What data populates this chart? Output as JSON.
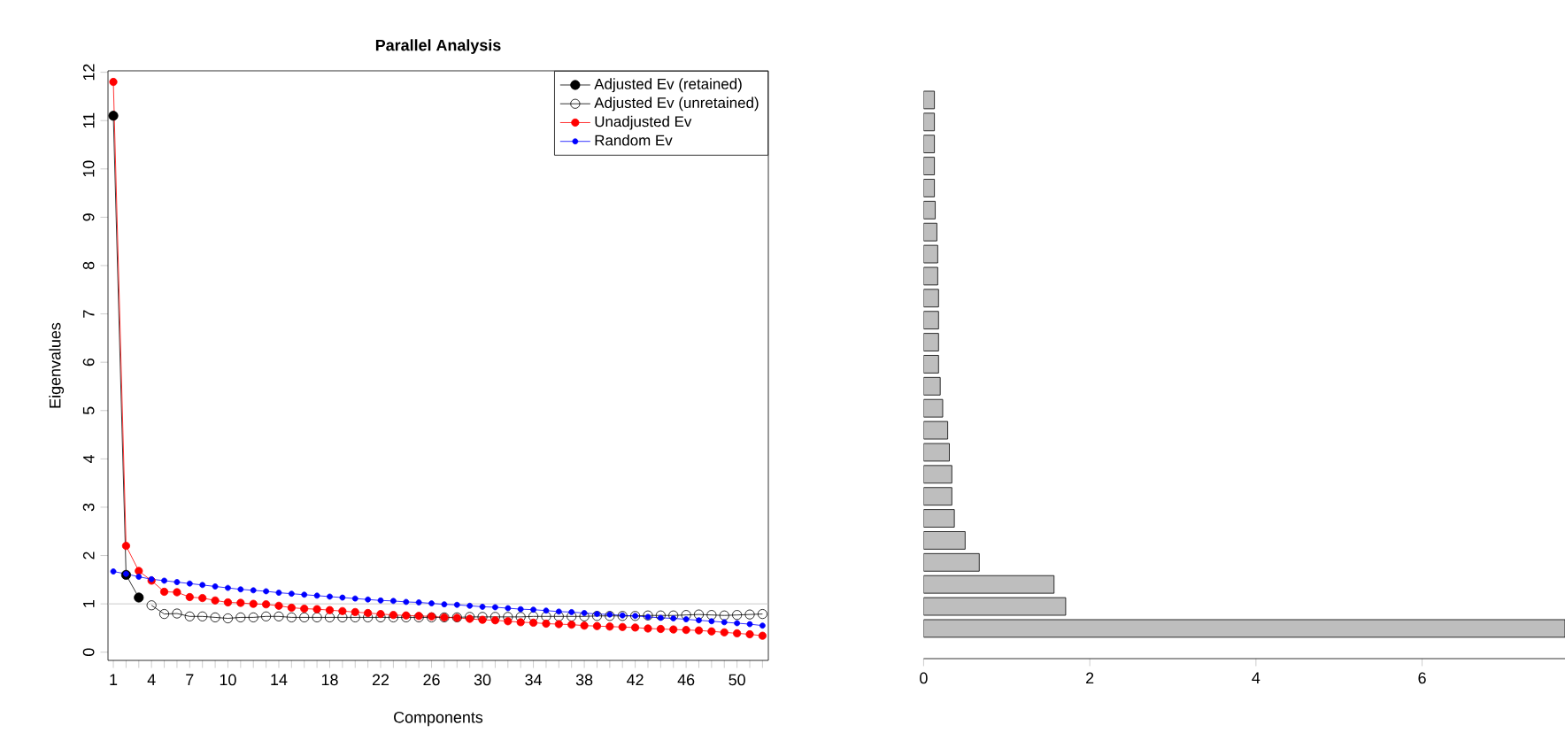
{
  "chart_data": [
    {
      "type": "line",
      "title": "Parallel Analysis",
      "xlabel": "Components",
      "ylabel": "Eigenvalues",
      "xlim": [
        0.58,
        52.46
      ],
      "ylim": [
        -0.17,
        12.03
      ],
      "xticks": [
        1,
        {
          "value": 2,
          "label": null
        },
        {
          "value": 3,
          "label": null
        },
        4,
        {
          "value": 5,
          "label": null
        },
        {
          "value": 6,
          "label": null
        },
        7,
        {
          "value": 8,
          "label": null
        },
        {
          "value": 9,
          "label": null
        },
        10,
        {
          "value": 11,
          "label": null
        },
        {
          "value": 12,
          "label": null
        },
        {
          "value": 13,
          "label": null
        },
        14,
        {
          "value": 15,
          "label": null
        },
        {
          "value": 16,
          "label": null
        },
        {
          "value": 17,
          "label": null
        },
        18,
        {
          "value": 19,
          "label": null
        },
        {
          "value": 20,
          "label": null
        },
        {
          "value": 21,
          "label": null
        },
        22,
        {
          "value": 23,
          "label": null
        },
        {
          "value": 24,
          "label": null
        },
        {
          "value": 25,
          "label": null
        },
        26,
        {
          "value": 27,
          "label": null
        },
        {
          "value": 28,
          "label": null
        },
        {
          "value": 29,
          "label": null
        },
        30,
        {
          "value": 31,
          "label": null
        },
        {
          "value": 32,
          "label": null
        },
        {
          "value": 33,
          "label": null
        },
        34,
        {
          "value": 35,
          "label": null
        },
        {
          "value": 36,
          "label": null
        },
        {
          "value": 37,
          "label": null
        },
        38,
        {
          "value": 39,
          "label": null
        },
        {
          "value": 40,
          "label": null
        },
        {
          "value": 41,
          "label": null
        },
        42,
        {
          "value": 43,
          "label": null
        },
        {
          "value": 44,
          "label": null
        },
        {
          "value": 45,
          "label": null
        },
        46,
        {
          "value": 47,
          "label": null
        },
        {
          "value": 48,
          "label": null
        },
        {
          "value": 49,
          "label": null
        },
        50,
        {
          "value": 51,
          "label": null
        },
        {
          "value": 52,
          "label": null
        }
      ],
      "yticks": [
        0,
        1,
        2,
        3,
        4,
        5,
        6,
        7,
        8,
        9,
        10,
        11,
        12
      ],
      "legend": "top right",
      "grid": false,
      "ref_lines": [
        {
          "axis": "y",
          "value": 1,
          "color": "#bebebe"
        }
      ],
      "series": [
        {
          "name": "Adjusted Ev (retained)",
          "color": "#000000",
          "marker": "circle",
          "x": [
            1,
            2,
            3
          ],
          "values": [
            11.1,
            1.6,
            1.13
          ]
        },
        {
          "name": "Adjusted Ev (unretained)",
          "color": "#000000",
          "marker": "open circle",
          "x": [
            4,
            5,
            6,
            7,
            8,
            9,
            10,
            11,
            12,
            13,
            14,
            15,
            16,
            17,
            18,
            19,
            20,
            21,
            22,
            23,
            24,
            25,
            26,
            27,
            28,
            29,
            30,
            31,
            32,
            33,
            34,
            35,
            36,
            37,
            38,
            39,
            40,
            41,
            42,
            43,
            44,
            45,
            46,
            47,
            48,
            49,
            50,
            51,
            52
          ],
          "values": [
            0.97,
            0.79,
            0.8,
            0.74,
            0.74,
            0.72,
            0.7,
            0.72,
            0.72,
            0.74,
            0.74,
            0.72,
            0.72,
            0.72,
            0.72,
            0.72,
            0.72,
            0.72,
            0.72,
            0.72,
            0.72,
            0.72,
            0.72,
            0.72,
            0.72,
            0.73,
            0.73,
            0.73,
            0.73,
            0.73,
            0.74,
            0.74,
            0.74,
            0.74,
            0.74,
            0.75,
            0.75,
            0.75,
            0.75,
            0.76,
            0.76,
            0.76,
            0.77,
            0.78,
            0.77,
            0.76,
            0.77,
            0.78,
            0.79
          ]
        },
        {
          "name": "Unadjusted Ev",
          "color": "#ff0000",
          "marker": "circle",
          "x": [
            1,
            2,
            3,
            4,
            5,
            6,
            7,
            8,
            9,
            10,
            11,
            12,
            13,
            14,
            15,
            16,
            17,
            18,
            19,
            20,
            21,
            22,
            23,
            24,
            25,
            26,
            27,
            28,
            29,
            30,
            31,
            32,
            33,
            34,
            35,
            36,
            37,
            38,
            39,
            40,
            41,
            42,
            43,
            44,
            45,
            46,
            47,
            48,
            49,
            50,
            51,
            52
          ],
          "values": [
            11.8,
            2.2,
            1.68,
            1.48,
            1.25,
            1.24,
            1.14,
            1.12,
            1.07,
            1.03,
            1.02,
            1.0,
            0.99,
            0.96,
            0.92,
            0.9,
            0.89,
            0.87,
            0.85,
            0.83,
            0.81,
            0.79,
            0.77,
            0.76,
            0.75,
            0.74,
            0.72,
            0.71,
            0.69,
            0.67,
            0.66,
            0.64,
            0.62,
            0.61,
            0.59,
            0.58,
            0.57,
            0.55,
            0.54,
            0.53,
            0.52,
            0.51,
            0.49,
            0.48,
            0.47,
            0.46,
            0.45,
            0.43,
            0.41,
            0.39,
            0.37,
            0.34
          ]
        },
        {
          "name": "Random Ev",
          "color": "#0000ff",
          "marker": "circle",
          "x": [
            1,
            2,
            3,
            4,
            5,
            6,
            7,
            8,
            9,
            10,
            11,
            12,
            13,
            14,
            15,
            16,
            17,
            18,
            19,
            20,
            21,
            22,
            23,
            24,
            25,
            26,
            27,
            28,
            29,
            30,
            31,
            32,
            33,
            34,
            35,
            36,
            37,
            38,
            39,
            40,
            41,
            42,
            43,
            44,
            45,
            46,
            47,
            48,
            49,
            50,
            51,
            52
          ],
          "values": [
            1.67,
            1.62,
            1.56,
            1.51,
            1.48,
            1.45,
            1.42,
            1.39,
            1.36,
            1.33,
            1.3,
            1.28,
            1.26,
            1.23,
            1.21,
            1.19,
            1.17,
            1.15,
            1.13,
            1.11,
            1.09,
            1.07,
            1.06,
            1.04,
            1.03,
            1.01,
            0.99,
            0.98,
            0.96,
            0.94,
            0.93,
            0.91,
            0.89,
            0.88,
            0.86,
            0.84,
            0.83,
            0.81,
            0.79,
            0.78,
            0.76,
            0.75,
            0.73,
            0.71,
            0.7,
            0.68,
            0.66,
            0.64,
            0.62,
            0.6,
            0.58,
            0.55
          ]
        }
      ]
    },
    {
      "type": "bar",
      "orientation": "horizontal",
      "color": "#bebebe",
      "categories": [
        null,
        null,
        null,
        null,
        null,
        null,
        null,
        null,
        null,
        null,
        null,
        null,
        null,
        null,
        null,
        null,
        null,
        null,
        null,
        null,
        null,
        null,
        null,
        null,
        null
      ],
      "values": [
        0.13,
        0.13,
        0.13,
        0.13,
        0.13,
        0.14,
        0.16,
        0.17,
        0.17,
        0.18,
        0.18,
        0.18,
        0.18,
        0.2,
        0.23,
        0.29,
        0.31,
        0.34,
        0.34,
        0.37,
        0.5,
        0.67,
        1.57,
        1.71,
        7.72
      ],
      "xlim": [
        0,
        7.72
      ],
      "xticks": [
        0,
        2,
        4,
        6
      ]
    }
  ]
}
